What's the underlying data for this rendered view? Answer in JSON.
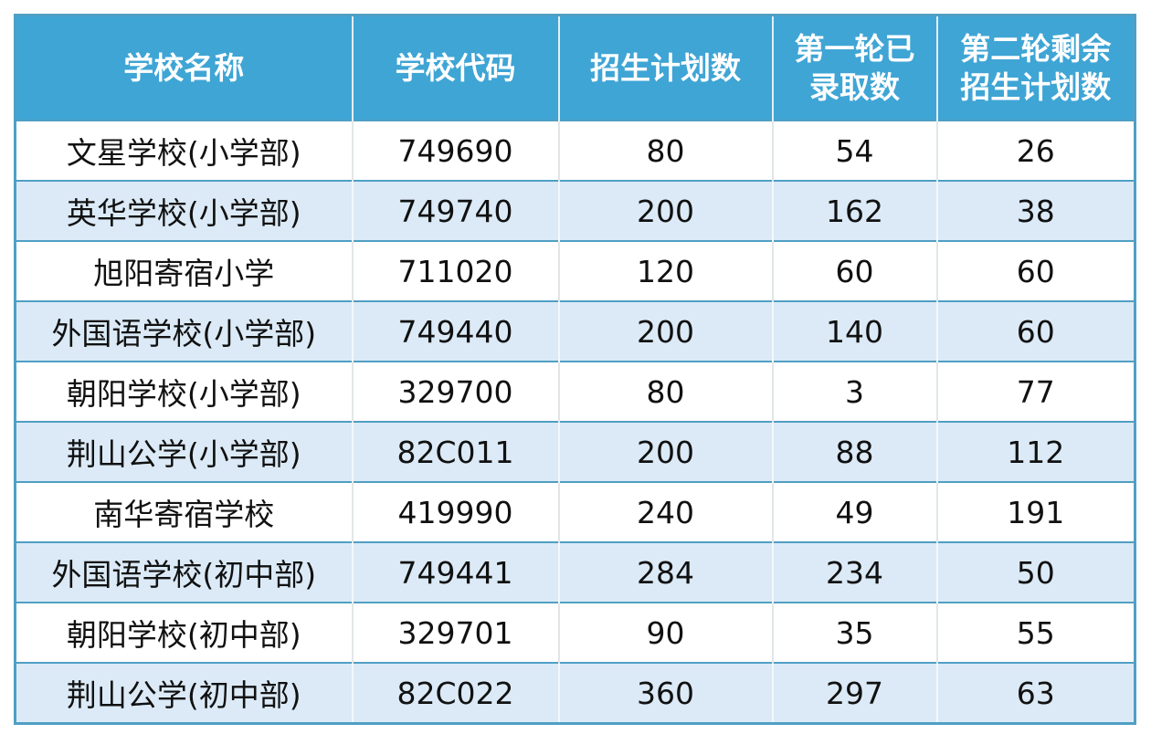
{
  "table": {
    "headers": [
      "学校名称",
      "学校代码",
      "招生计划数",
      "第一轮已\n录取数",
      "第二轮剩余\n招生计划数"
    ],
    "header_lines": [
      [
        "学校名称"
      ],
      [
        "学校代码"
      ],
      [
        "招生计划数"
      ],
      [
        "第一轮已",
        "录取数"
      ],
      [
        "第二轮剩余",
        "招生计划数"
      ]
    ],
    "rows": [
      [
        "文星学校(小学部)",
        "749690",
        "80",
        "54",
        "26"
      ],
      [
        "英华学校(小学部)",
        "749740",
        "200",
        "162",
        "38"
      ],
      [
        "旭阳寄宿小学",
        "711020",
        "120",
        "60",
        "60"
      ],
      [
        "外国语学校(小学部)",
        "749440",
        "200",
        "140",
        "60"
      ],
      [
        "朝阳学校(小学部)",
        "329700",
        "80",
        "3",
        "77"
      ],
      [
        "荆山公学(小学部)",
        "82C011",
        "200",
        "88",
        "112"
      ],
      [
        "南华寄宿学校",
        "419990",
        "240",
        "49",
        "191"
      ],
      [
        "外国语学校(初中部)",
        "749441",
        "284",
        "234",
        "50"
      ],
      [
        "朝阳学校(初中部)",
        "329701",
        "90",
        "35",
        "55"
      ],
      [
        "荆山公学(初中部)",
        "82C022",
        "360",
        "297",
        "63"
      ]
    ]
  },
  "colors": {
    "header_bg": "#3fa5d5",
    "alt_row_bg": "#dbeaf6",
    "border": "#4f9fc4"
  }
}
